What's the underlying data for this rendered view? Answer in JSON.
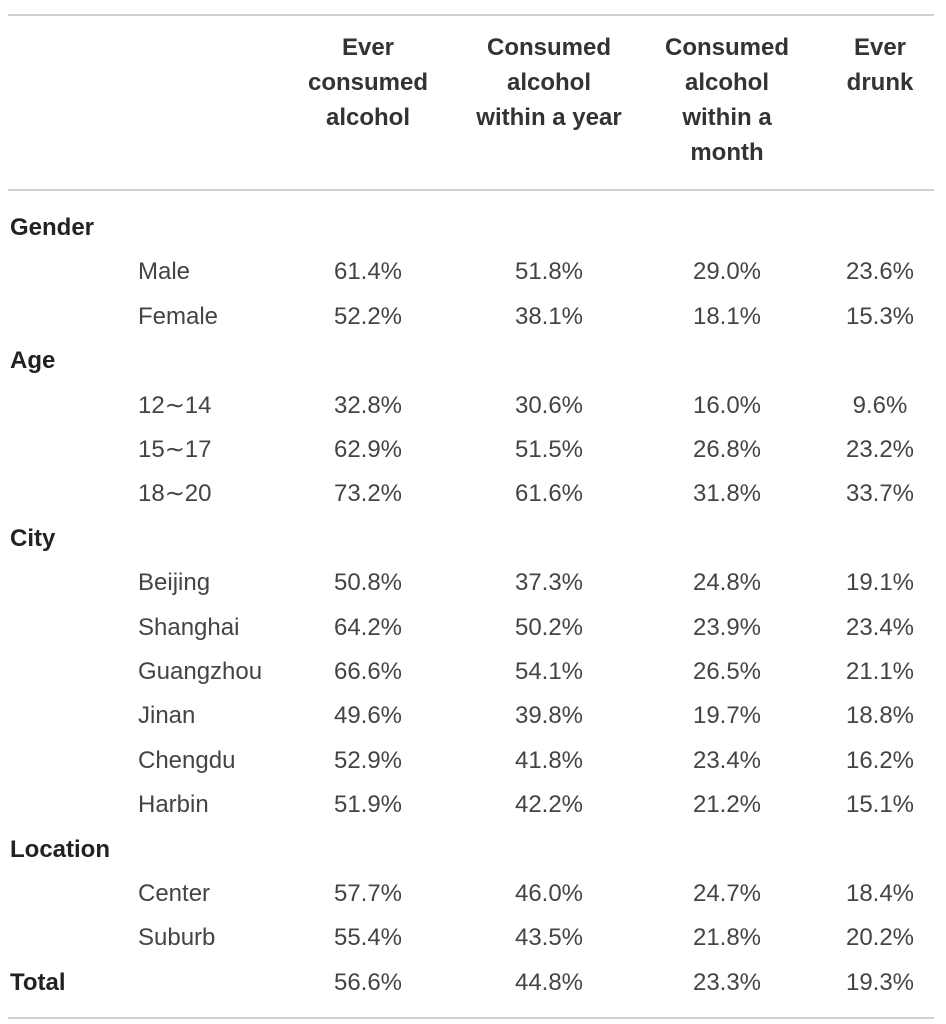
{
  "headers": [
    {
      "lines": [
        "Ever",
        "consumed",
        "alcohol"
      ]
    },
    {
      "lines": [
        "Consumed",
        "alcohol",
        "within a year"
      ]
    },
    {
      "lines": [
        "Consumed",
        "alcohol",
        "within a",
        "month"
      ]
    },
    {
      "lines": [
        "Ever",
        "drunk"
      ]
    }
  ],
  "rows": [
    {
      "type": "group",
      "label": "Gender"
    },
    {
      "type": "data",
      "label": "Male",
      "values": [
        "61.4%",
        "51.8%",
        "29.0%",
        "23.6%"
      ]
    },
    {
      "type": "data",
      "label": "Female",
      "values": [
        "52.2%",
        "38.1%",
        "18.1%",
        "15.3%"
      ]
    },
    {
      "type": "group",
      "label": "Age"
    },
    {
      "type": "data",
      "label": "12∼14",
      "values": [
        "32.8%",
        "30.6%",
        "16.0%",
        "9.6%"
      ]
    },
    {
      "type": "data",
      "label": "15∼17",
      "values": [
        "62.9%",
        "51.5%",
        "26.8%",
        "23.2%"
      ]
    },
    {
      "type": "data",
      "label": "18∼20",
      "values": [
        "73.2%",
        "61.6%",
        "31.8%",
        "33.7%"
      ]
    },
    {
      "type": "group",
      "label": "City"
    },
    {
      "type": "data",
      "label": "Beijing",
      "values": [
        "50.8%",
        "37.3%",
        "24.8%",
        "19.1%"
      ]
    },
    {
      "type": "data",
      "label": "Shanghai",
      "values": [
        "64.2%",
        "50.2%",
        "23.9%",
        "23.4%"
      ]
    },
    {
      "type": "data",
      "label": "Guangzhou",
      "values": [
        "66.6%",
        "54.1%",
        "26.5%",
        "21.1%"
      ]
    },
    {
      "type": "data",
      "label": "Jinan",
      "values": [
        "49.6%",
        "39.8%",
        "19.7%",
        "18.8%"
      ]
    },
    {
      "type": "data",
      "label": "Chengdu",
      "values": [
        "52.9%",
        "41.8%",
        "23.4%",
        "16.2%"
      ]
    },
    {
      "type": "data",
      "label": "Harbin",
      "values": [
        "51.9%",
        "42.2%",
        "21.2%",
        "15.1%"
      ]
    },
    {
      "type": "group",
      "label": "Location"
    },
    {
      "type": "data",
      "label": "Center",
      "values": [
        "57.7%",
        "46.0%",
        "24.7%",
        "18.4%"
      ]
    },
    {
      "type": "data",
      "label": "Suburb",
      "values": [
        "55.4%",
        "43.5%",
        "21.8%",
        "20.2%"
      ]
    },
    {
      "type": "total",
      "label": "Total",
      "values": [
        "56.6%",
        "44.8%",
        "23.3%",
        "19.3%"
      ]
    }
  ]
}
